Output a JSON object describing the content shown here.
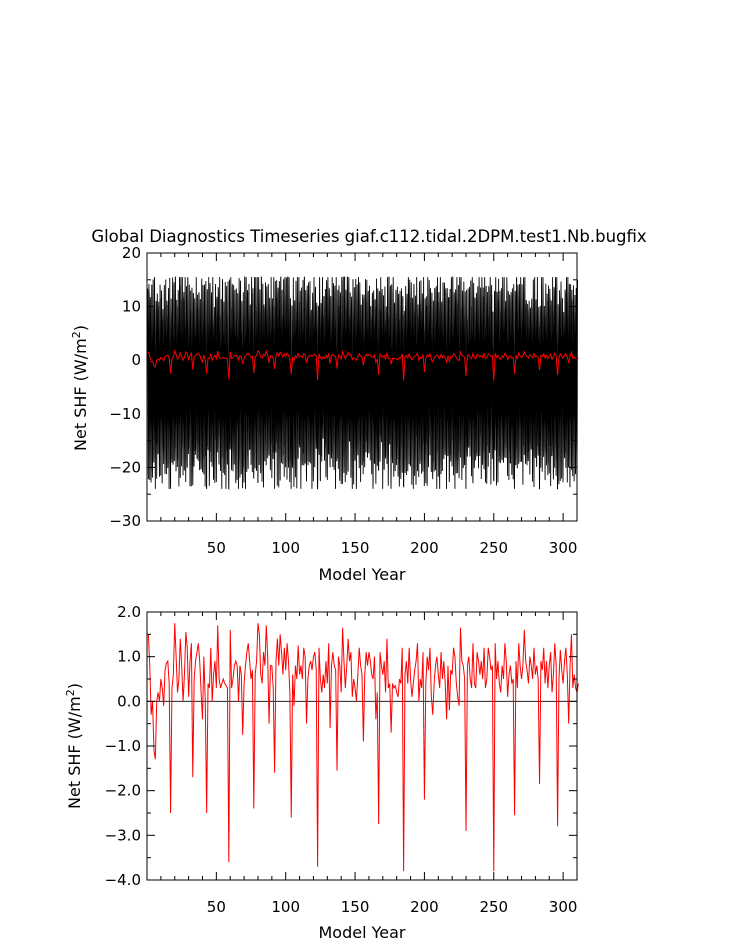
{
  "figure": {
    "title": "Global Diagnostics Timeseries giaf.c112.tidal.2DPM.test1.Nb.bugfix"
  },
  "chart_data": [
    {
      "id": "top",
      "type": "line",
      "title": "Global Diagnostics Timeseries giaf.c112.tidal.2DPM.test1.Nb.bugfix",
      "xlabel": "Model Year",
      "ylabel": "Net SHF (W/m²)",
      "ylabel_main": "Net SHF (W/m",
      "ylabel_sup": "2",
      "ylabel_close": ")",
      "xlim": [
        0,
        310
      ],
      "ylim": [
        -30,
        20
      ],
      "xticks": [
        50,
        100,
        150,
        200,
        250,
        300
      ],
      "xtick_labels": [
        "50",
        "100",
        "150",
        "200",
        "250",
        "300"
      ],
      "yticks": [
        -30,
        -20,
        -10,
        0,
        10,
        20
      ],
      "ytick_labels": [
        "−30",
        "−20",
        "−10",
        "0",
        "10",
        "20"
      ],
      "zero_line": true,
      "grid": false,
      "series": [
        {
          "description": "monthly values, oscillating roughly between -22 and +14 each year across all 310 years",
          "color": "#000000",
          "monthly_envelope": {
            "max_approx": 14,
            "min_approx": -22,
            "mean": 0.2
          }
        },
        {
          "description": "annual mean (same as lower panel)",
          "color": "#ff0000",
          "source": "annual_mean"
        }
      ]
    },
    {
      "id": "bottom",
      "type": "line",
      "xlabel": "Model Year",
      "ylabel": "Net SHF (W/m²)",
      "ylabel_main": "Net SHF (W/m",
      "ylabel_sup": "2",
      "ylabel_close": ")",
      "xlim": [
        0,
        310
      ],
      "ylim": [
        -4.0,
        2.0
      ],
      "xticks": [
        50,
        100,
        150,
        200,
        250,
        300
      ],
      "xtick_labels": [
        "50",
        "100",
        "150",
        "200",
        "250",
        "300"
      ],
      "yticks": [
        -4,
        -3,
        -2,
        -1,
        0,
        1,
        2
      ],
      "ytick_labels": [
        "−4.0",
        "−3.0",
        "−2.0",
        "−1.0",
        "0.0",
        "1.0",
        "2.0"
      ],
      "zero_line": true,
      "grid": false,
      "series": [
        {
          "color": "#ff0000",
          "x_start": 1,
          "x_step": 1,
          "values": [
            1.5,
            0.8,
            -0.3,
            0.0,
            -1.1,
            -1.3,
            0.0,
            0.2,
            0.0,
            0.5,
            0.3,
            -0.1,
            0.7,
            0.85,
            0.9,
            0.4,
            -2.5,
            0.3,
            0.6,
            1.75,
            1.0,
            0.2,
            0.5,
            1.4,
            0.8,
            0.0,
            0.6,
            1.55,
            1.2,
            0.1,
            0.9,
            1.3,
            -1.7,
            0.5,
            0.9,
            1.1,
            1.3,
            0.9,
            0.2,
            -0.4,
            1.0,
            0.0,
            -2.5,
            0.4,
            0.3,
            1.2,
            0.0,
            0.6,
            0.9,
            0.3,
            1.7,
            0.5,
            0.3,
            0.4,
            0.5,
            0.4,
            0.35,
            0.3,
            -3.6,
            1.6,
            0.3,
            0.5,
            0.8,
            0.9,
            0.8,
            0.0,
            0.8,
            0.6,
            -0.75,
            0.4,
            0.8,
            1.1,
            1.3,
            0.9,
            0.5,
            0.7,
            -2.4,
            0.6,
            0.9,
            1.75,
            1.5,
            0.6,
            0.4,
            1.1,
            0.8,
            1.7,
            1.0,
            -0.5,
            0.8,
            0.8,
            0.3,
            -1.6,
            0.9,
            1.4,
            0.8,
            1.5,
            1.1,
            0.6,
            1.2,
            0.7,
            1.3,
            0.9,
            0.2,
            -2.6,
            0.6,
            -0.1,
            0.8,
            0.5,
            1.25,
            0.6,
            0.8,
            0.5,
            1.2,
            1.0,
            -0.5,
            0.5,
            0.8,
            0.9,
            0.7,
            1.0,
            1.1,
            0.7,
            -3.7,
            1.2,
            0.5,
            0.2,
            0.6,
            0.3,
            0.9,
            0.4,
            1.3,
            -0.6,
            0.8,
            1.1,
            0.8,
            0.7,
            -1.55,
            1.0,
            0.8,
            0.2,
            1.65,
            0.9,
            0.3,
            0.8,
            1.4,
            0.9,
            1.1,
            0.1,
            0.5,
            0.3,
            0.0,
            0.6,
            1.2,
            0.8,
            0.6,
            -0.9,
            0.6,
            1.1,
            0.8,
            1.1,
            0.9,
            0.6,
            0.5,
            1.0,
            -0.4,
            0.2,
            -2.75,
            1.1,
            0.8,
            0.6,
            0.9,
            0.2,
            1.4,
            0.3,
            0.4,
            -0.7,
            0.4,
            0.3,
            0.35,
            0.2,
            0.1,
            0.5,
            0.4,
            1.2,
            -3.8,
            0.6,
            0.9,
            0.4,
            1.2,
            0.5,
            0.1,
            0.4,
            0.7,
            0.9,
            1.3,
            0.0,
            0.5,
            0.3,
            1.1,
            -2.2,
            0.4,
            1.0,
            0.7,
            1.2,
            0.1,
            -0.3,
            0.4,
            0.8,
            1.0,
            0.6,
            0.3,
            1.1,
            0.5,
            0.9,
            0.4,
            -0.4,
            0.8,
            -0.2,
            0.7,
            0.6,
            1.2,
            1.0,
            0.4,
            0.1,
            -0.1,
            1.65,
            0.9,
            0.8,
            0.5,
            -2.9,
            0.8,
            1.0,
            0.5,
            0.3,
            1.3,
            0.4,
            0.3,
            1.1,
            0.9,
            0.6,
            0.9,
            0.5,
            1.2,
            0.3,
            0.5,
            1.2,
            1.0,
            0.7,
            0.8,
            -3.8,
            1.3,
            0.5,
            0.9,
            0.4,
            0.2,
            0.8,
            0.5,
            1.3,
            0.9,
            0.1,
            0.6,
            0.8,
            0.4,
            0.5,
            -2.55,
            0.9,
            0.3,
            1.3,
            0.8,
            0.5,
            0.8,
            1.6,
            0.9,
            0.7,
            0.4,
            1.0,
            0.8,
            0.5,
            1.2,
            0.6,
            0.8,
            0.5,
            -1.85,
            0.9,
            0.7,
            1.2,
            0.4,
            0.9,
            0.3,
            0.8,
            1.1,
            0.2,
            0.6,
            1.3,
            0.8,
            -2.8,
            0.5,
            1.15,
            0.7,
            0.4,
            0.9,
            1.2,
            0.6,
            -0.5,
            0.8,
            1.5,
            0.3,
            0.6,
            0.3,
            0.2,
            0.4
          ]
        }
      ]
    }
  ]
}
